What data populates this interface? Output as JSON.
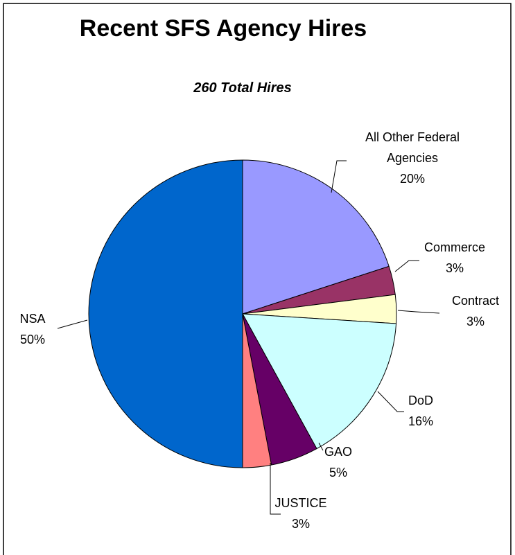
{
  "chart_data": {
    "type": "pie",
    "title": "Recent SFS Agency Hires",
    "subtitle": "260 Total Hires",
    "categories": [
      "All Other Federal Agencies",
      "Commerce",
      "Contract",
      "DoD",
      "GAO",
      "JUSTICE",
      "NSA"
    ],
    "values": [
      20,
      3,
      3,
      16,
      5,
      3,
      50
    ],
    "value_labels": [
      "20%",
      "3%",
      "3%",
      "16%",
      "5%",
      "3%",
      "50%"
    ],
    "colors": [
      "#9999ff",
      "#993366",
      "#ffffcc",
      "#ccffff",
      "#660066",
      "#ff8080",
      "#0066cc"
    ]
  }
}
